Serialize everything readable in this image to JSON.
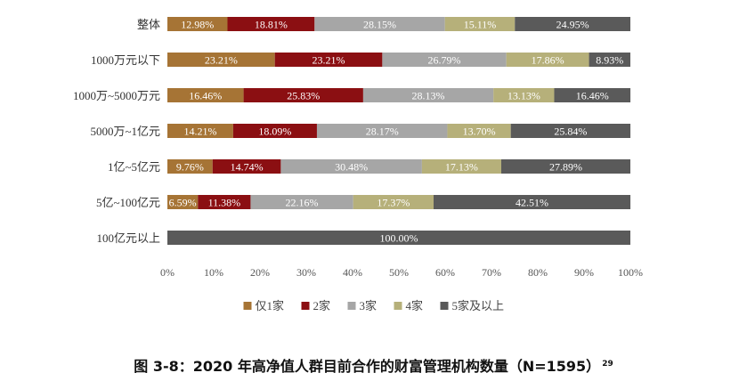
{
  "chart_data": {
    "type": "bar",
    "orientation": "horizontal",
    "stacked": true,
    "categories": [
      "整体",
      "1000万元以下",
      "1000万~5000万元",
      "5000万~1亿元",
      "1亿~5亿元",
      "5亿~100亿元",
      "100亿元以上"
    ],
    "series": [
      {
        "name": "仅1家",
        "color": "#a67435",
        "values": [
          12.98,
          23.21,
          16.46,
          14.21,
          9.76,
          6.59,
          0
        ]
      },
      {
        "name": "2家",
        "color": "#8b0f12",
        "values": [
          18.81,
          23.21,
          25.83,
          18.09,
          14.74,
          11.38,
          0
        ]
      },
      {
        "name": "3家",
        "color": "#a6a6a6",
        "values": [
          28.15,
          26.79,
          28.13,
          28.17,
          30.48,
          22.16,
          0
        ]
      },
      {
        "name": "4家",
        "color": "#b6b07a",
        "values": [
          15.11,
          17.86,
          13.13,
          13.7,
          17.13,
          17.37,
          0
        ]
      },
      {
        "name": "5家及以上",
        "color": "#5a5a5a",
        "values": [
          24.95,
          8.93,
          16.46,
          25.84,
          27.89,
          42.51,
          100.0
        ]
      }
    ],
    "labels": [
      [
        "12.98%",
        "18.81%",
        "28.15%",
        "15.11%",
        "24.95%"
      ],
      [
        "23.21%",
        "23.21%",
        "26.79%",
        "17.86%",
        "8.93%"
      ],
      [
        "16.46%",
        "25.83%",
        "28.13%",
        "13.13%",
        "16.46%"
      ],
      [
        "14.21%",
        "18.09%",
        "28.17%",
        "13.70%",
        "25.84%"
      ],
      [
        "9.76%",
        "14.74%",
        "30.48%",
        "17.13%",
        "27.89%"
      ],
      [
        "6.59%",
        "11.38%",
        "22.16%",
        "17.37%",
        "42.51%"
      ],
      [
        "",
        "",
        "",
        "",
        "100.00%"
      ]
    ],
    "xticks": [
      "0%",
      "10%",
      "20%",
      "30%",
      "40%",
      "50%",
      "60%",
      "70%",
      "80%",
      "90%",
      "100%"
    ],
    "xlim": [
      0,
      100
    ],
    "grid": false,
    "legend_position": "bottom"
  },
  "caption": {
    "text": "图 3-8：2020 年高净值人群目前合作的财富管理机构数量（N=1595）",
    "footnote": "29"
  }
}
